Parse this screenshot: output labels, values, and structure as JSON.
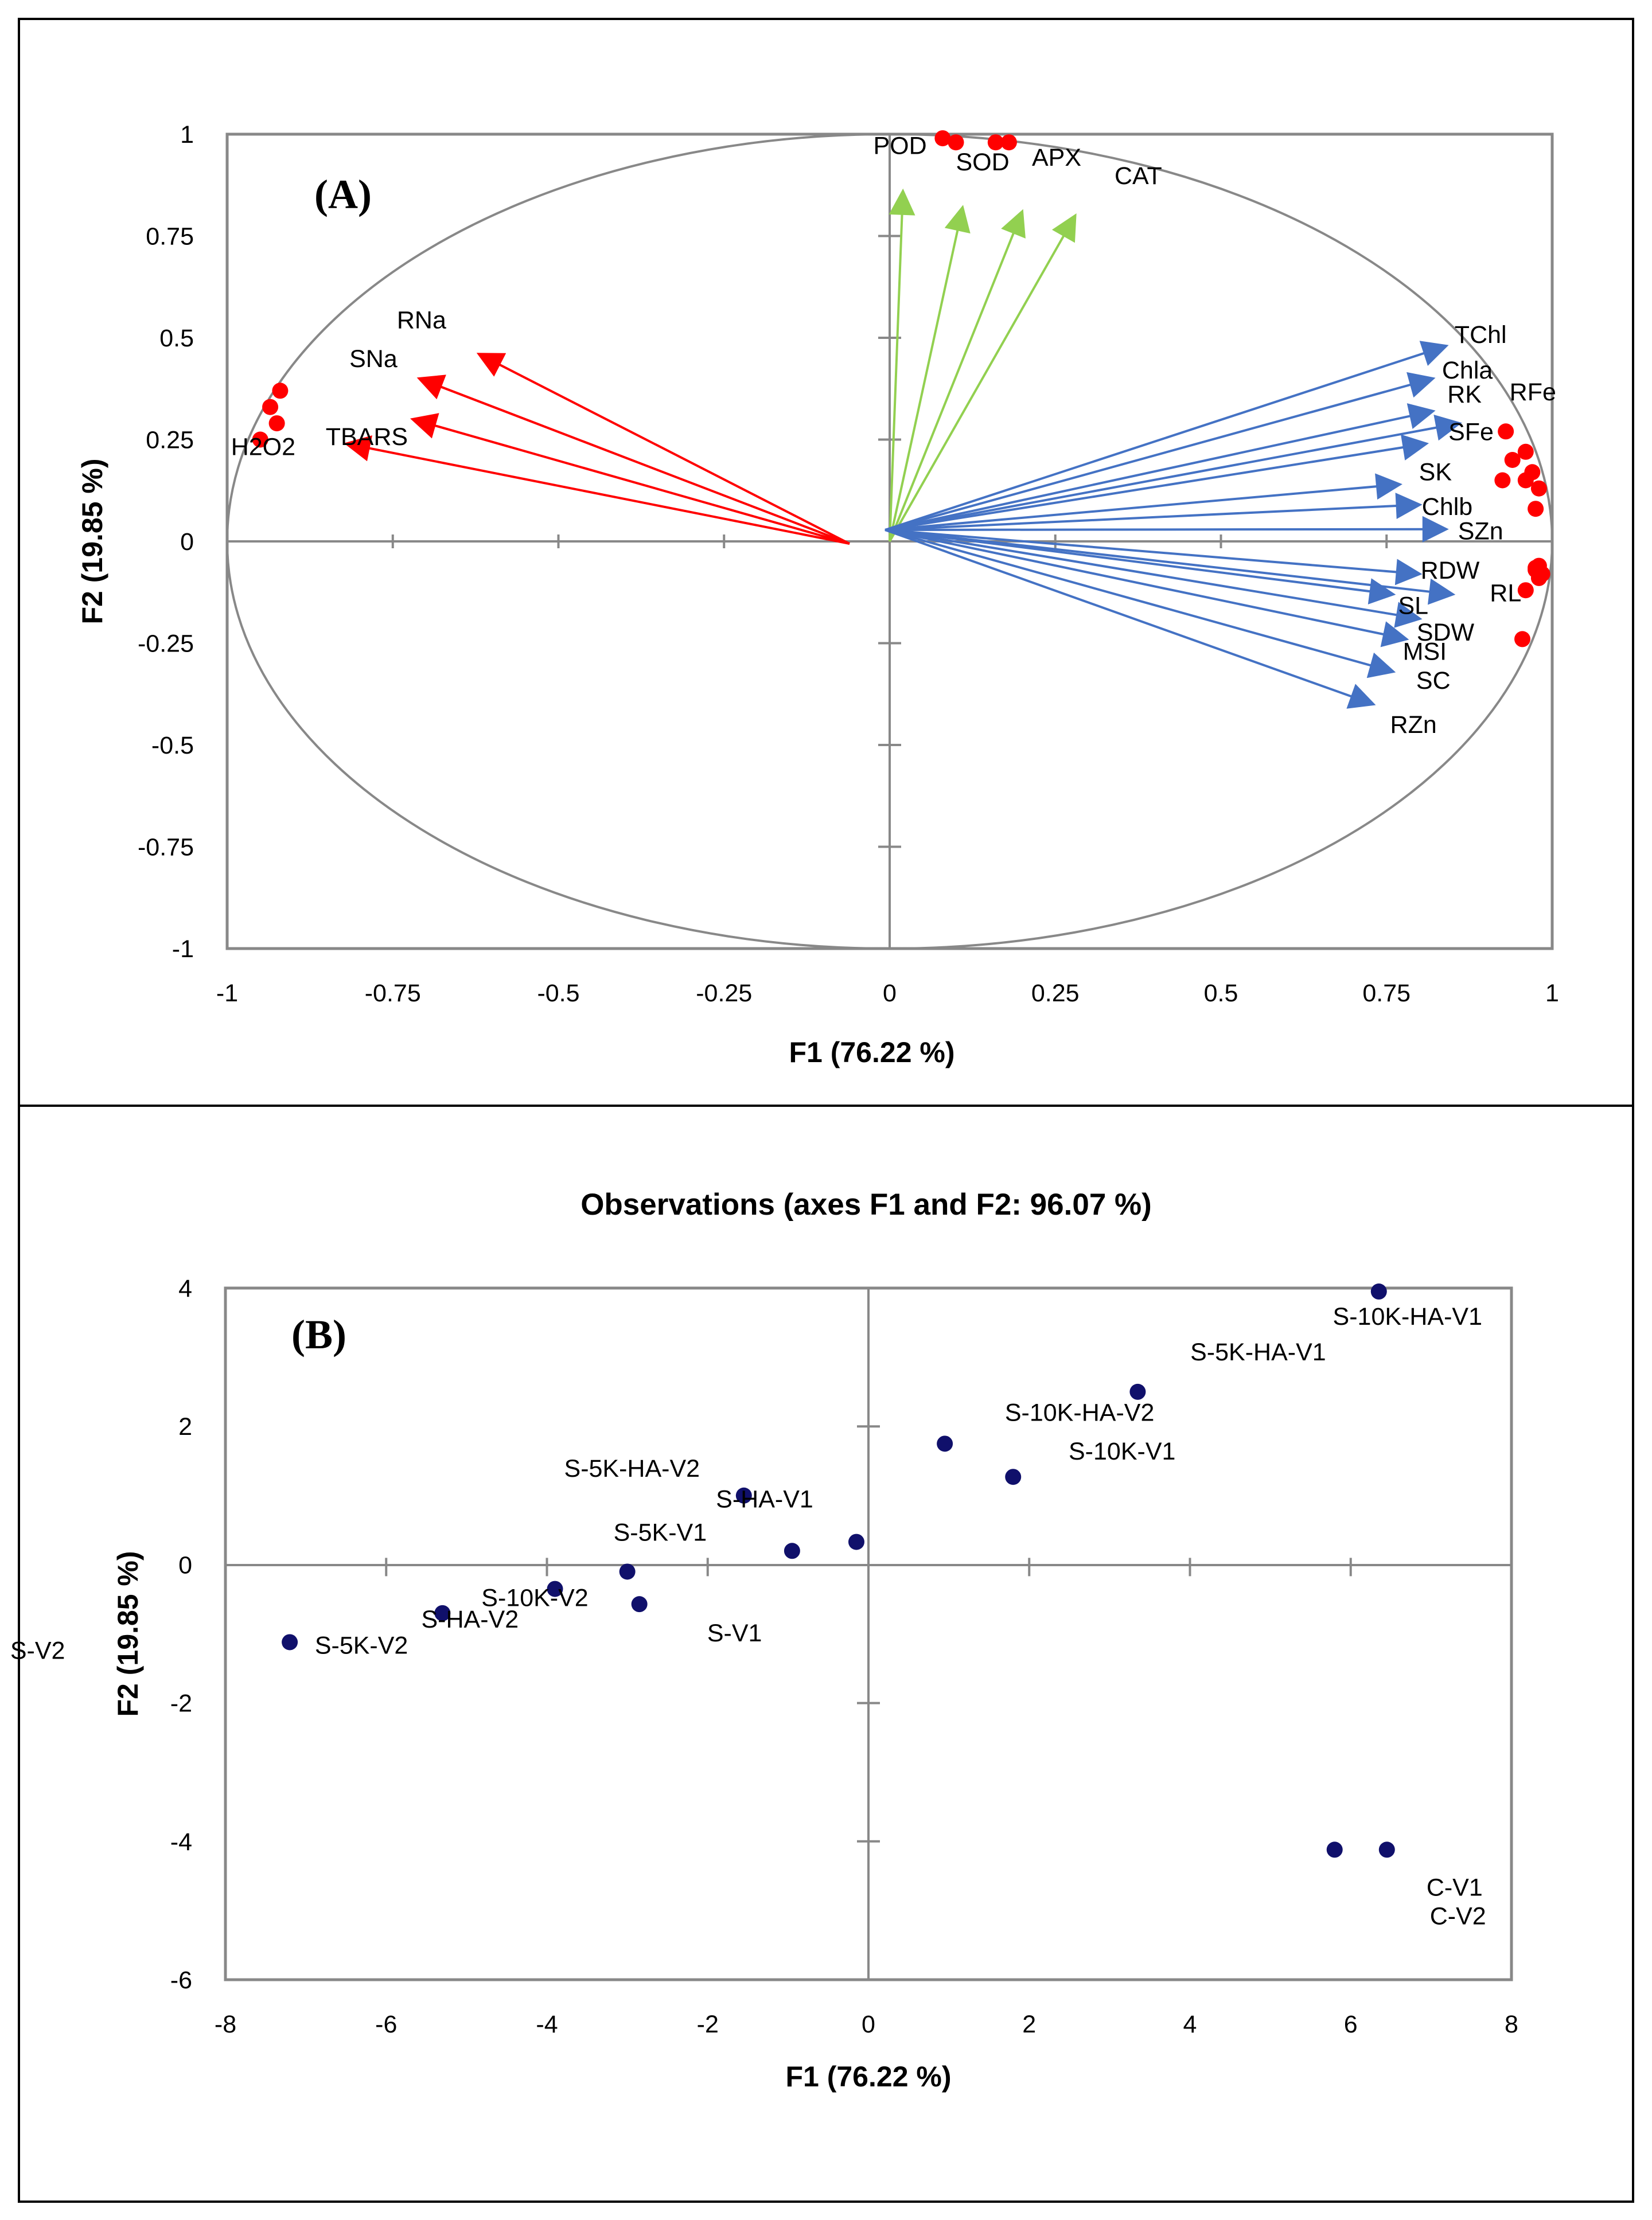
{
  "chart_data": [
    {
      "type": "scatter",
      "subtype": "correlation-circle-biplot",
      "panel_label": "(A)",
      "xlabel": "F1 (76.22 %)",
      "ylabel": "F2 (19.85 %)",
      "xlim": [
        -1,
        1
      ],
      "ylim": [
        -1,
        1
      ],
      "x_ticks": [
        -1,
        -0.75,
        -0.5,
        -0.25,
        0,
        0.25,
        0.5,
        0.75,
        1
      ],
      "y_ticks": [
        -1,
        -0.75,
        -0.5,
        -0.25,
        0,
        0.25,
        0.5,
        0.75,
        1
      ],
      "colors": {
        "antioxidant": "#92d050",
        "stress": "#ff0000",
        "growth": "#4472c4",
        "point": "#ff0000"
      },
      "series": [
        {
          "name": "Antioxidant enzymes",
          "group": "antioxidant",
          "vectors": [
            {
              "label": "POD",
              "x": 0.02,
              "y": 0.86,
              "tip_x": 0.08,
              "tip_y": 0.99
            },
            {
              "label": "SOD",
              "x": 0.11,
              "y": 0.82,
              "tip_x": 0.1,
              "tip_y": 0.98
            },
            {
              "label": "APX",
              "x": 0.2,
              "y": 0.81,
              "tip_x": 0.16,
              "tip_y": 0.98
            },
            {
              "label": "CAT",
              "x": 0.28,
              "y": 0.8,
              "tip_x": 0.18,
              "tip_y": 0.98
            }
          ]
        },
        {
          "name": "Stress markers",
          "group": "stress",
          "vectors": [
            {
              "label": "RNa",
              "x": -0.62,
              "y": 0.46,
              "tip_x": -0.92,
              "tip_y": 0.37
            },
            {
              "label": "SNa",
              "x": -0.71,
              "y": 0.4,
              "tip_x": -0.935,
              "tip_y": 0.33
            },
            {
              "label": "TBARS",
              "x": -0.72,
              "y": 0.3,
              "tip_x": -0.925,
              "tip_y": 0.29
            },
            {
              "label": "H2O2",
              "x": -0.82,
              "y": 0.24,
              "tip_x": -0.95,
              "tip_y": 0.25
            }
          ]
        },
        {
          "name": "Growth and nutrient traits",
          "group": "growth",
          "vectors": [
            {
              "label": "TChl",
              "x": 0.84,
              "y": 0.48,
              "tip_x": 0.93,
              "tip_y": 0.27
            },
            {
              "label": "Chla",
              "x": 0.82,
              "y": 0.4,
              "tip_x": 0.94,
              "tip_y": 0.2
            },
            {
              "label": "RK",
              "x": 0.82,
              "y": 0.32,
              "tip_x": 0.96,
              "tip_y": 0.22
            },
            {
              "label": "RFe",
              "x": 0.86,
              "y": 0.29,
              "tip_x": 0.97,
              "tip_y": 0.17
            },
            {
              "label": "SFe",
              "x": 0.81,
              "y": 0.24,
              "tip_x": 0.925,
              "tip_y": 0.15
            },
            {
              "label": "SK",
              "x": 0.77,
              "y": 0.14,
              "tip_x": 0.96,
              "tip_y": 0.15
            },
            {
              "label": "Chlb",
              "x": 0.8,
              "y": 0.09,
              "tip_x": 0.98,
              "tip_y": 0.13
            },
            {
              "label": "SZn",
              "x": 0.84,
              "y": 0.03,
              "tip_x": 0.975,
              "tip_y": 0.08
            },
            {
              "label": "RDW",
              "x": 0.8,
              "y": -0.08,
              "tip_x": 0.98,
              "tip_y": -0.06
            },
            {
              "label": "RL",
              "x": 0.85,
              "y": -0.13,
              "tip_x": 0.985,
              "tip_y": -0.08
            },
            {
              "label": "SL",
              "x": 0.76,
              "y": -0.13,
              "tip_x": 0.975,
              "tip_y": -0.07
            },
            {
              "label": "SDW",
              "x": 0.8,
              "y": -0.19,
              "tip_x": 0.96,
              "tip_y": -0.12
            },
            {
              "label": "MSI",
              "x": 0.78,
              "y": -0.24,
              "tip_x": 0.955,
              "tip_y": -0.24
            },
            {
              "label": "SC",
              "x": 0.76,
              "y": -0.32,
              "tip_x": 0.975,
              "tip_y": -0.065
            },
            {
              "label": "RZn",
              "x": 0.73,
              "y": -0.4,
              "tip_x": 0.98,
              "tip_y": -0.09
            }
          ]
        }
      ]
    },
    {
      "type": "scatter",
      "panel_label": "(B)",
      "title": "Observations (axes F1 and F2: 96.07 %)",
      "xlabel": "F1 (76.22 %)",
      "ylabel": "F2 (19.85 %)",
      "xlim": [
        -8,
        8
      ],
      "ylim": [
        -6,
        4
      ],
      "x_ticks": [
        -8,
        -6,
        -4,
        -2,
        0,
        2,
        4,
        6,
        8
      ],
      "y_ticks": [
        -6,
        -4,
        -2,
        0,
        2,
        4
      ],
      "colors": {
        "point": "#10106b"
      },
      "points": [
        {
          "label": "S-10K-HA-V1",
          "x": 6.35,
          "y": 3.95
        },
        {
          "label": "S-5K-HA-V1",
          "x": 3.35,
          "y": 2.5
        },
        {
          "label": "S-10K-HA-V2",
          "x": 0.95,
          "y": 1.75
        },
        {
          "label": "S-10K-V1",
          "x": 1.8,
          "y": 1.27
        },
        {
          "label": "S-5K-HA-V2",
          "x": -1.55,
          "y": 1.0
        },
        {
          "label": "S-HA-V1",
          "x": -0.15,
          "y": 0.33
        },
        {
          "label": "S-5K-V1",
          "x": -0.95,
          "y": 0.2
        },
        {
          "label": "S-V1",
          "x": -2.85,
          "y": -0.57
        },
        {
          "label": "S-10K-V2",
          "x": -3.9,
          "y": -0.35
        },
        {
          "label": "S-HA-V2",
          "x": -5.3,
          "y": -0.7
        },
        {
          "label": "S-5K-V2",
          "x": -7.2,
          "y": -1.12
        },
        {
          "label": "S-V2",
          "x": -3.0,
          "y": -0.1
        },
        {
          "label": "C-V1",
          "x": 6.45,
          "y": -4.12
        },
        {
          "label": "C-V2",
          "x": 5.8,
          "y": -4.12
        }
      ]
    }
  ]
}
